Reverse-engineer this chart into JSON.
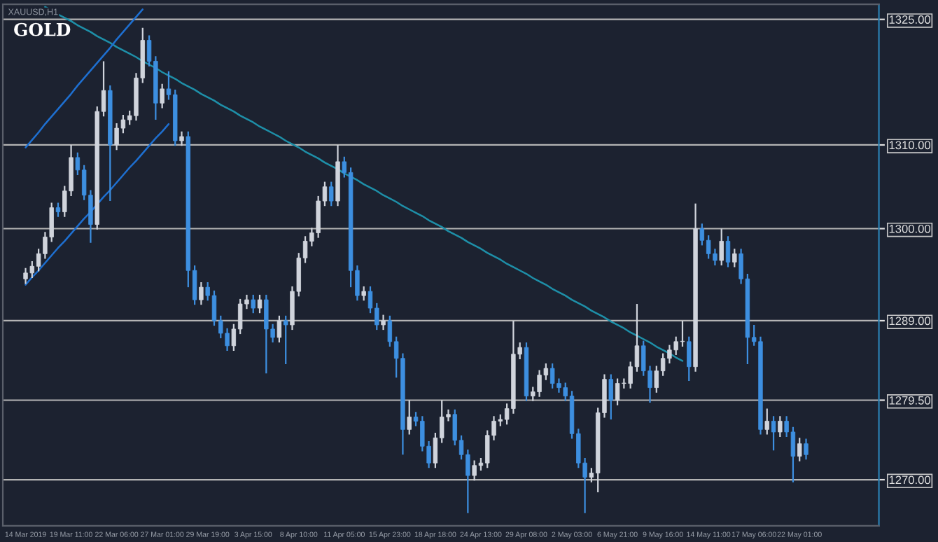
{
  "chart_data": {
    "type": "candlestick",
    "title": "GOLD",
    "subtitle": "XAUUSD,H1",
    "colors": [
      "#d0d4dc",
      "#d0d4dc",
      "#d0d4dc",
      "#d0d4dc",
      "#d0d4dc",
      "#3d8fe0",
      "#d0d4dc",
      "#d0d4dc",
      "#3d8fe0",
      "#3d8fe0",
      "#3d8fe0",
      "#d0d4dc",
      "#d0d4dc",
      "#3d8fe0",
      "#d0d4dc",
      "#d0d4dc",
      "#d0d4dc",
      "#d0d4dc",
      "#d0d4dc",
      "#3d8fe0",
      "#3d8fe0",
      "#d0d4dc",
      "#3d8fe0",
      "#3d8fe0",
      "#d0d4dc",
      "#3d8fe0",
      "#3d8fe0",
      "#d0d4dc",
      "#3d8fe0",
      "#3d8fe0",
      "#3d8fe0",
      "#3d8fe0",
      "#d0d4dc",
      "#d0d4dc",
      "#d0d4dc",
      "#3d8fe0",
      "#d0d4dc",
      "#3d8fe0",
      "#3d8fe0",
      "#d0d4dc",
      "#3d8fe0",
      "#d0d4dc",
      "#d0d4dc",
      "#d0d4dc",
      "#d0d4dc",
      "#d0d4dc",
      "#d0d4dc",
      "#3d8fe0",
      "#d0d4dc",
      "#3d8fe0",
      "#3d8fe0",
      "#3d8fe0",
      "#d0d4dc",
      "#3d8fe0",
      "#3d8fe0",
      "#d0d4dc",
      "#3d8fe0",
      "#3d8fe0",
      "#3d8fe0",
      "#d0d4dc",
      "#3d8fe0",
      "#3d8fe0",
      "#3d8fe0",
      "#d0d4dc",
      "#d0d4dc",
      "#d0d4dc",
      "#3d8fe0",
      "#3d8fe0",
      "#3d8fe0",
      "#d0d4dc",
      "#d0d4dc",
      "#d0d4dc",
      "#d0d4dc",
      "#d0d4dc",
      "#d0d4dc",
      "#d0d4dc",
      "#d0d4dc",
      "#3d8fe0",
      "#d0d4dc",
      "#d0d4dc",
      "#d0d4dc",
      "#3d8fe0",
      "#3d8fe0",
      "#3d8fe0",
      "#3d8fe0",
      "#3d8fe0",
      "#3d8fe0",
      "#d0d4dc",
      "#d0d4dc",
      "#d0d4dc",
      "#3d8fe0",
      "#d0d4dc",
      "#d0d4dc",
      "#d0d4dc",
      "#d0d4dc",
      "#3d8fe0",
      "#3d8fe0",
      "#d0d4dc",
      "#d0d4dc",
      "#d0d4dc",
      "#d0d4dc",
      "#d0d4dc",
      "#3d8fe0",
      "#d0d4dc",
      "#3d8fe0",
      "#3d8fe0",
      "#3d8fe0",
      "#d0d4dc",
      "#3d8fe0",
      "#d0d4dc",
      "#3d8fe0",
      "#3d8fe0",
      "#3d8fe0",
      "#3d8fe0",
      "#d0d4dc",
      "#3d8fe0",
      "#d0d4dc",
      "#3d8fe0",
      "#3d8fe0",
      "#d0d4dc",
      "#3d8fe0"
    ],
    "categories": [
      "14 Mar 2019",
      null,
      null,
      null,
      null,
      null,
      null,
      "19 Mar 11:00",
      null,
      null,
      null,
      null,
      null,
      null,
      "22 Mar 06:00",
      null,
      null,
      null,
      null,
      null,
      null,
      "27 Mar 01:00",
      null,
      null,
      null,
      null,
      null,
      null,
      "29 Mar 19:00",
      null,
      null,
      null,
      null,
      null,
      null,
      "3 Apr 15:00",
      null,
      null,
      null,
      null,
      null,
      null,
      "8 Apr 10:00",
      null,
      null,
      null,
      null,
      null,
      null,
      "11 Apr 05:00",
      null,
      null,
      null,
      null,
      null,
      null,
      "15 Apr 23:00",
      null,
      null,
      null,
      null,
      null,
      null,
      "18 Apr 18:00",
      null,
      null,
      null,
      null,
      null,
      null,
      "24 Apr 13:00",
      null,
      null,
      null,
      null,
      null,
      null,
      "29 Apr 08:00",
      null,
      null,
      null,
      null,
      null,
      null,
      "2 May 03:00",
      null,
      null,
      null,
      null,
      null,
      null,
      "6 May 21:00",
      null,
      null,
      null,
      null,
      null,
      null,
      "9 May 16:00",
      null,
      null,
      null,
      null,
      null,
      null,
      "14 May 11:00",
      null,
      null,
      null,
      null,
      null,
      null,
      "17 May 06:00",
      null,
      null,
      null,
      null,
      null,
      null,
      "22 May 01:00",
      null
    ],
    "ohlc": [
      [
        1294,
        1295.3,
        1293.4,
        1294.7
      ],
      [
        1294.7,
        1296.1,
        1294.1,
        1295.5
      ],
      [
        1295.5,
        1297.6,
        1294.9,
        1297
      ],
      [
        1297,
        1299.6,
        1296.4,
        1299
      ],
      [
        1299,
        1303.1,
        1298.4,
        1302.5
      ],
      [
        1302.5,
        1303.1,
        1301.4,
        1302
      ],
      [
        1302,
        1305.1,
        1301.4,
        1304.5
      ],
      [
        1304.5,
        1310,
        1303.9,
        1308.5
      ],
      [
        1308.5,
        1309.1,
        1306.4,
        1307
      ],
      [
        1307,
        1307.6,
        1303.4,
        1304
      ],
      [
        1304,
        1304.6,
        1298.3,
        1300.5
      ],
      [
        1300.5,
        1314.6,
        1299.9,
        1314
      ],
      [
        1314,
        1320,
        1313.4,
        1316.5
      ],
      [
        1316.5,
        1317.1,
        1303.3,
        1310
      ],
      [
        1310,
        1312.6,
        1309.4,
        1312
      ],
      [
        1312,
        1313.6,
        1311.4,
        1313
      ],
      [
        1313,
        1314.1,
        1312.4,
        1313.5
      ],
      [
        1313.5,
        1318.6,
        1312.9,
        1318
      ],
      [
        1318,
        1324,
        1317.4,
        1322.5
      ],
      [
        1322.5,
        1323.1,
        1319.4,
        1320
      ],
      [
        1320,
        1320.6,
        1313,
        1315
      ],
      [
        1315,
        1317.3,
        1314.4,
        1316.7
      ],
      [
        1316.7,
        1318.8,
        1315.4,
        1316
      ],
      [
        1316,
        1316.6,
        1309.9,
        1310.5
      ],
      [
        1310.5,
        1311.6,
        1309.9,
        1311
      ],
      [
        1311,
        1311.6,
        1293,
        1295
      ],
      [
        1295,
        1295.6,
        1290.9,
        1291.5
      ],
      [
        1291.5,
        1293.6,
        1290.9,
        1293
      ],
      [
        1293,
        1293.6,
        1291.4,
        1292
      ],
      [
        1292,
        1292.6,
        1288.4,
        1289
      ],
      [
        1289,
        1289.6,
        1286.9,
        1287.5
      ],
      [
        1287.5,
        1288.1,
        1285.4,
        1286
      ],
      [
        1286,
        1288.6,
        1285.4,
        1288
      ],
      [
        1288,
        1291.6,
        1287.4,
        1291
      ],
      [
        1291,
        1292.1,
        1290.4,
        1291.5
      ],
      [
        1291.5,
        1292.1,
        1289.9,
        1290.5
      ],
      [
        1290.5,
        1292.1,
        1289.9,
        1291.5
      ],
      [
        1291.5,
        1292.1,
        1282.7,
        1288
      ],
      [
        1288,
        1288.6,
        1286.4,
        1287
      ],
      [
        1287,
        1289.6,
        1286.4,
        1289
      ],
      [
        1289,
        1289.6,
        1283.8,
        1288.5
      ],
      [
        1288.5,
        1293.1,
        1287.9,
        1292.5
      ],
      [
        1292.5,
        1297.1,
        1291.9,
        1296.5
      ],
      [
        1296.5,
        1299.1,
        1295.9,
        1298.5
      ],
      [
        1298.5,
        1300.1,
        1297.9,
        1299.5
      ],
      [
        1299.5,
        1303.9,
        1298.9,
        1303.3
      ],
      [
        1303.3,
        1305.6,
        1302.7,
        1305
      ],
      [
        1305,
        1305.6,
        1302.7,
        1303.3
      ],
      [
        1303.3,
        1310,
        1302.7,
        1308
      ],
      [
        1308,
        1308.6,
        1306.1,
        1306.7
      ],
      [
        1306.7,
        1307.3,
        1293,
        1295
      ],
      [
        1295,
        1295.6,
        1291.4,
        1292
      ],
      [
        1292,
        1293.1,
        1291.4,
        1292.5
      ],
      [
        1292.5,
        1293.1,
        1289.9,
        1290.5
      ],
      [
        1290.5,
        1291.1,
        1287.9,
        1288.5
      ],
      [
        1288.5,
        1289.7,
        1287.9,
        1289
      ],
      [
        1289,
        1289.6,
        1285.9,
        1286.5
      ],
      [
        1286.5,
        1287.1,
        1282.2,
        1284.5
      ],
      [
        1284.5,
        1285.1,
        1273,
        1276
      ],
      [
        1276,
        1279.5,
        1275.4,
        1277.5
      ],
      [
        1277.5,
        1278.1,
        1276.4,
        1277
      ],
      [
        1277,
        1277.6,
        1273.4,
        1274
      ],
      [
        1274,
        1274.6,
        1271.4,
        1272
      ],
      [
        1272,
        1275.6,
        1271.4,
        1275
      ],
      [
        1275,
        1279.5,
        1274.4,
        1277.5
      ],
      [
        1277.5,
        1278.4,
        1277,
        1277.8
      ],
      [
        1277.8,
        1278.4,
        1274.1,
        1274.7
      ],
      [
        1274.7,
        1275.3,
        1272.4,
        1273
      ],
      [
        1273,
        1273.6,
        1266,
        1270.5
      ],
      [
        1270.5,
        1272.3,
        1269.9,
        1271.7
      ],
      [
        1271.7,
        1272.6,
        1271.1,
        1272
      ],
      [
        1272,
        1275.9,
        1271.4,
        1275.3
      ],
      [
        1275.3,
        1277.6,
        1274.7,
        1277
      ],
      [
        1277,
        1277.8,
        1276.4,
        1277.2
      ],
      [
        1277.2,
        1279.1,
        1276.6,
        1278.5
      ],
      [
        1278.5,
        1289,
        1277.9,
        1285
      ],
      [
        1285,
        1286.4,
        1284.4,
        1285.8
      ],
      [
        1285.8,
        1286.4,
        1279.4,
        1280
      ],
      [
        1280,
        1281.1,
        1279.4,
        1280.5
      ],
      [
        1280.5,
        1283.1,
        1279.9,
        1282.5
      ],
      [
        1282.5,
        1283.9,
        1281.9,
        1283.3
      ],
      [
        1283.3,
        1283.9,
        1280.9,
        1281.5
      ],
      [
        1281.5,
        1282.1,
        1280.4,
        1281
      ],
      [
        1281,
        1281.6,
        1279.4,
        1280
      ],
      [
        1280,
        1280.6,
        1274.9,
        1275.5
      ],
      [
        1275.5,
        1276.1,
        1271.4,
        1272
      ],
      [
        1272,
        1272.6,
        1266,
        1270.3
      ],
      [
        1270.3,
        1271.4,
        1269.7,
        1270.8
      ],
      [
        1270.8,
        1278.6,
        1268.5,
        1278
      ],
      [
        1278,
        1282.6,
        1277.4,
        1282
      ],
      [
        1282,
        1282.6,
        1277.2,
        1279.5
      ],
      [
        1279.5,
        1282.1,
        1278.9,
        1281.5
      ],
      [
        1281.5,
        1282.1,
        1280.9,
        1281.5
      ],
      [
        1281.5,
        1284.1,
        1280.9,
        1283.5
      ],
      [
        1283.5,
        1291,
        1282.9,
        1286
      ],
      [
        1286,
        1286.6,
        1282.4,
        1283
      ],
      [
        1283,
        1283.6,
        1279.2,
        1281
      ],
      [
        1281,
        1283.6,
        1280.4,
        1283
      ],
      [
        1283,
        1285.1,
        1282.4,
        1284.5
      ],
      [
        1284.5,
        1286.1,
        1283.9,
        1285.5
      ],
      [
        1285.5,
        1287.1,
        1284.9,
        1286.5
      ],
      [
        1286.5,
        1289,
        1285.9,
        1286.5
      ],
      [
        1286.5,
        1287.1,
        1281.8,
        1283.5
      ],
      [
        1283.5,
        1303,
        1282.9,
        1300
      ],
      [
        1300,
        1300.6,
        1298,
        1298.6
      ],
      [
        1298.6,
        1299.2,
        1296.4,
        1297
      ],
      [
        1297,
        1297.6,
        1295.6,
        1296.2
      ],
      [
        1296.2,
        1300,
        1295.6,
        1298.5
      ],
      [
        1298.5,
        1299.1,
        1295.4,
        1296
      ],
      [
        1296,
        1297.6,
        1295.4,
        1297
      ],
      [
        1297,
        1297.6,
        1293.4,
        1294
      ],
      [
        1294,
        1294.6,
        1283.8,
        1287
      ],
      [
        1287,
        1288.5,
        1286,
        1286.5
      ],
      [
        1286.5,
        1287.1,
        1275.4,
        1276
      ],
      [
        1276,
        1278.5,
        1275.4,
        1277
      ],
      [
        1277,
        1277.6,
        1273.5,
        1275.7
      ],
      [
        1275.7,
        1277.6,
        1275.1,
        1277
      ],
      [
        1277,
        1277.6,
        1275.1,
        1275.7
      ],
      [
        1275.7,
        1276.3,
        1269.7,
        1272.8
      ],
      [
        1272.8,
        1275,
        1272.2,
        1274.3
      ],
      [
        1274.3,
        1274.9,
        1272.4,
        1273
      ]
    ],
    "series": [
      {
        "type": "line",
        "color": "#1e8fa8",
        "values": [
          null,
          null,
          null,
          1326.5,
          1326.1,
          1325.6,
          1325.2,
          1324.8,
          1324.3,
          1323.9,
          1323.5,
          1323.0,
          1322.6,
          1322.2,
          1321.7,
          1321.3,
          1320.9,
          1320.5,
          1320.0,
          1319.6,
          1319.2,
          1318.7,
          1318.3,
          1317.9,
          1317.4,
          1317.0,
          1316.6,
          1316.1,
          1315.7,
          1315.3,
          1314.8,
          1314.4,
          1314.0,
          1313.5,
          1313.1,
          1312.7,
          1312.2,
          1311.8,
          1311.4,
          1311.0,
          1310.5,
          1310.1,
          1309.7,
          1309.2,
          1308.8,
          1308.4,
          1307.9,
          1307.5,
          1307.1,
          1306.6,
          1306.2,
          1305.8,
          1305.3,
          1304.9,
          1304.5,
          1304.0,
          1303.6,
          1303.2,
          1302.7,
          1302.3,
          1301.9,
          1301.5,
          1301.0,
          1300.6,
          1300.2,
          1299.7,
          1299.3,
          1298.9,
          1298.4,
          1298.0,
          1297.6,
          1297.1,
          1296.7,
          1296.3,
          1295.8,
          1295.4,
          1295.0,
          1294.6,
          1294.1,
          1293.7,
          1293.3,
          1292.8,
          1292.4,
          1292.0,
          1291.5,
          1291.1,
          1290.7,
          1290.2,
          1289.8,
          1289.4,
          1288.9,
          1288.5,
          1288.1,
          1287.6,
          1287.2,
          1286.8,
          1286.4,
          1285.9,
          1285.5,
          1285.1,
          1284.6,
          1284.2,
          null,
          null,
          null,
          null,
          null,
          null,
          null,
          null,
          null,
          null,
          null,
          null,
          null,
          null,
          null,
          null,
          null,
          null,
          null
        ]
      },
      {
        "type": "line",
        "color": "#1e6fd0",
        "values": [
          1309.7,
          1310.6,
          1311.5,
          1312.5,
          1313.4,
          1314.3,
          1315.2,
          1316.1,
          1317.1,
          1318.0,
          1318.9,
          1319.8,
          1320.7,
          1321.6,
          1322.6,
          1323.5,
          1324.4,
          1325.3,
          1326.2,
          null,
          null,
          null,
          null,
          null,
          null,
          null,
          null,
          null,
          null,
          null,
          null,
          null,
          null,
          null,
          null,
          null,
          null,
          null,
          null,
          null,
          null,
          null,
          null,
          null,
          null,
          null,
          null,
          null,
          null,
          null,
          null,
          null,
          null,
          null,
          null,
          null,
          null,
          null,
          null,
          null,
          null,
          null,
          null,
          null,
          null,
          null,
          null,
          null,
          null,
          null,
          null,
          null,
          null,
          null,
          null,
          null,
          null,
          null,
          null,
          null,
          null,
          null,
          null,
          null,
          null,
          null,
          null,
          null,
          null,
          null,
          null,
          null,
          null,
          null,
          null,
          null,
          null,
          null,
          null,
          null,
          null,
          null,
          null,
          null,
          null,
          null,
          null,
          null,
          null,
          null,
          null,
          null,
          null,
          null,
          null,
          null,
          null,
          null,
          null,
          null,
          null
        ]
      },
      {
        "type": "line",
        "color": "#1e6fd0",
        "values": [
          1293.3,
          1294.2,
          1295.0,
          1295.9,
          1296.8,
          1297.7,
          1298.5,
          1299.4,
          1300.3,
          1301.2,
          1302.0,
          1302.9,
          1303.8,
          1304.6,
          1305.5,
          1306.4,
          1307.3,
          1308.1,
          1309.0,
          1309.9,
          1310.8,
          1311.6,
          1312.5,
          null,
          null,
          null,
          null,
          null,
          null,
          null,
          null,
          null,
          null,
          null,
          null,
          null,
          null,
          null,
          null,
          null,
          null,
          null,
          null,
          null,
          null,
          null,
          null,
          null,
          null,
          null,
          null,
          null,
          null,
          null,
          null,
          null,
          null,
          null,
          null,
          null,
          null,
          null,
          null,
          null,
          null,
          null,
          null,
          null,
          null,
          null,
          null,
          null,
          null,
          null,
          null,
          null,
          null,
          null,
          null,
          null,
          null,
          null,
          null,
          null,
          null,
          null,
          null,
          null,
          null,
          null,
          null,
          null,
          null,
          null,
          null,
          null,
          null,
          null,
          null,
          null,
          null,
          null,
          null,
          null,
          null,
          null,
          null,
          null,
          null,
          null,
          null,
          null,
          null,
          null,
          null,
          null,
          null,
          null,
          null,
          null,
          null
        ]
      }
    ],
    "ref_lines": [
      {
        "axis": "y",
        "value": 1325,
        "color": "#b4b4b4"
      },
      {
        "axis": "y",
        "value": 1310,
        "color": "#b4b4b4"
      },
      {
        "axis": "y",
        "value": 1300,
        "color": "#b4b4b4"
      },
      {
        "axis": "y",
        "value": 1289,
        "color": "#b4b4b4"
      },
      {
        "axis": "y",
        "value": 1279.5,
        "color": "#b4b4b4"
      },
      {
        "axis": "y",
        "value": 1270,
        "color": "#b4b4b4"
      }
    ],
    "ylim": [
      1264.5,
      1326.8
    ],
    "yticks": [
      {
        "value": 1270,
        "label": "1270.00"
      },
      {
        "value": 1279.5,
        "label": "1279.50"
      },
      {
        "value": 1289,
        "label": "1289.00"
      },
      {
        "value": 1300,
        "label": "1300.00"
      },
      {
        "value": 1310,
        "label": "1310.00"
      },
      {
        "value": 1325,
        "label": "1325.00"
      }
    ],
    "grid": false,
    "legend": false
  }
}
